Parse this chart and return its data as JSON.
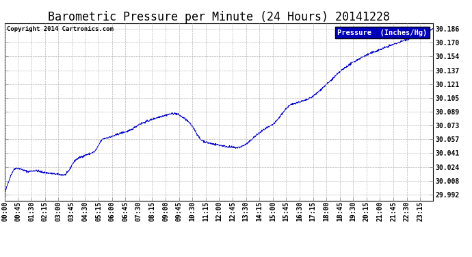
{
  "title": "Barometric Pressure per Minute (24 Hours) 20141228",
  "copyright": "Copyright 2014 Cartronics.com",
  "legend_label": "Pressure  (Inches/Hg)",
  "line_color": "#0000CC",
  "background_color": "#ffffff",
  "grid_color": "#b0b0b0",
  "yticks": [
    29.992,
    30.008,
    30.024,
    30.041,
    30.057,
    30.073,
    30.089,
    30.105,
    30.121,
    30.137,
    30.154,
    30.17,
    30.186
  ],
  "ylim": [
    29.985,
    30.193
  ],
  "xtick_labels": [
    "00:00",
    "00:45",
    "01:30",
    "02:15",
    "03:00",
    "03:45",
    "04:30",
    "05:15",
    "06:00",
    "06:45",
    "07:30",
    "08:15",
    "09:00",
    "09:45",
    "10:30",
    "11:15",
    "12:00",
    "12:45",
    "13:30",
    "14:15",
    "15:00",
    "15:45",
    "16:30",
    "17:15",
    "18:00",
    "18:45",
    "19:30",
    "20:15",
    "21:00",
    "21:45",
    "22:30",
    "23:15"
  ],
  "title_fontsize": 12,
  "tick_fontsize": 7,
  "legend_fontsize": 7.5,
  "copyright_fontsize": 6.5,
  "ctrl_x": [
    0,
    40,
    80,
    100,
    130,
    150,
    170,
    200,
    240,
    270,
    300,
    330,
    360,
    390,
    420,
    450,
    480,
    510,
    540,
    570,
    600,
    630,
    660,
    690,
    720,
    750,
    780,
    810,
    840,
    870,
    900,
    960,
    1020,
    1080,
    1140,
    1200,
    1260,
    1320,
    1380,
    1439
  ],
  "ctrl_y": [
    29.993,
    30.023,
    30.019,
    30.02,
    30.018,
    30.017,
    30.016,
    30.015,
    30.033,
    30.038,
    30.042,
    30.057,
    30.06,
    30.064,
    30.067,
    30.074,
    30.078,
    30.082,
    30.085,
    30.087,
    30.082,
    30.072,
    30.056,
    30.052,
    30.05,
    30.048,
    30.047,
    30.051,
    30.06,
    30.068,
    30.074,
    30.097,
    30.104,
    30.121,
    30.14,
    30.153,
    30.162,
    30.17,
    30.178,
    30.186
  ]
}
